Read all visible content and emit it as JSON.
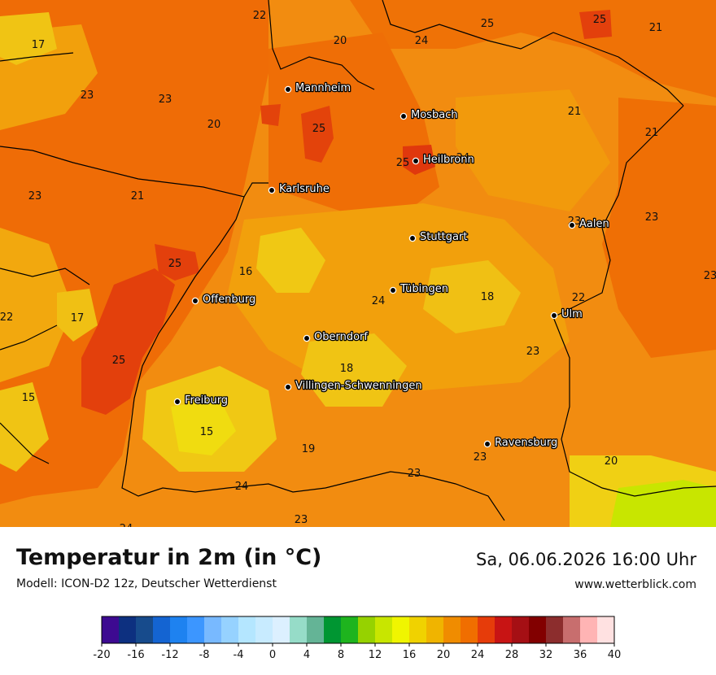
{
  "title": "Temperatur in 2m (in °C)",
  "subtitle": "Modell: ICON-D2 12z, Deutscher Wetterdienst",
  "datetime": "Sa, 06.06.2026 16:00 Uhr",
  "website": "www.wetterblick.com",
  "cities": [
    {
      "name": "Mannheim"
    },
    {
      "name": "Mosbach"
    },
    {
      "name": "Heilbronn"
    },
    {
      "name": "Karlsruhe"
    },
    {
      "name": "Aalen"
    },
    {
      "name": "Stuttgart"
    },
    {
      "name": "Tübingen"
    },
    {
      "name": "Offenburg"
    },
    {
      "name": "Ulm"
    },
    {
      "name": "Oberndorf"
    },
    {
      "name": "Villingen-Schwenningen"
    },
    {
      "name": "Freiburg"
    },
    {
      "name": "Ravensburg"
    }
  ],
  "value_labels": [
    "22",
    "25",
    "17",
    "20",
    "24",
    "25",
    "21",
    "23",
    "23",
    "20",
    "25",
    "21",
    "21",
    "25",
    "24",
    "23",
    "21",
    "23",
    "23",
    "16",
    "25",
    "23",
    "22",
    "24",
    "18",
    "17",
    "25",
    "22",
    "23",
    "18",
    "15",
    "15",
    "19",
    "23",
    "20",
    "23",
    "24",
    "23",
    "24"
  ],
  "legend": {
    "ticks": [
      "-20",
      "-16",
      "-12",
      "-8",
      "-4",
      "0",
      "4",
      "8",
      "12",
      "16",
      "20",
      "24",
      "28",
      "32",
      "36",
      "40"
    ],
    "colors": [
      "#3d0a91",
      "#0d3080",
      "#174b8c",
      "#1464d2",
      "#1e82f0",
      "#3c96ff",
      "#78b9ff",
      "#96d2ff",
      "#b4e6ff",
      "#c8ebff",
      "#dcf0ff",
      "#96dcc8",
      "#64b496",
      "#009632",
      "#1eb41e",
      "#96d200",
      "#c8e600",
      "#f0f500",
      "#f0d200",
      "#f0b400",
      "#f08c00",
      "#f06e00",
      "#e63c0a",
      "#c81414",
      "#a50f14",
      "#820000",
      "#8c2d2d",
      "#c86e6e",
      "#ffb4b4",
      "#ffe1e1"
    ]
  }
}
